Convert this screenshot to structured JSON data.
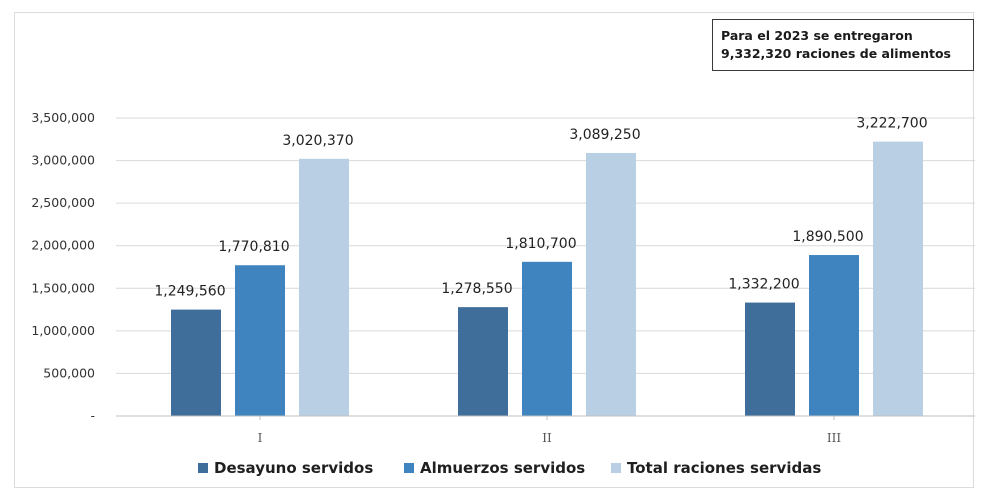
{
  "note": {
    "line1": "Para el 2023 se entregaron",
    "line2": "9,332,320 raciones de alimentos"
  },
  "colors": {
    "desayuno": "#3f6e9b",
    "almuerzos": "#3f84bf",
    "total": "#b9cfe4",
    "grid": "#d9d9d9"
  },
  "chart_data": {
    "type": "bar",
    "categories": [
      "I",
      "II",
      "III"
    ],
    "series": [
      {
        "name": "Desayuno servidos",
        "values": [
          1249560,
          1278550,
          1332200
        ],
        "labels": [
          "1,249,560",
          "1,278,550",
          "1,332,200"
        ]
      },
      {
        "name": "Almuerzos servidos",
        "values": [
          1770810,
          1810700,
          1890500
        ],
        "labels": [
          "1,770,810",
          "1,810,700",
          "1,890,500"
        ]
      },
      {
        "name": "Total raciones servidas",
        "values": [
          3020370,
          3089250,
          3222700
        ],
        "labels": [
          "3,020,370",
          "3,089,250",
          "3,222,700"
        ]
      }
    ],
    "ylim": [
      0,
      3500000
    ],
    "yticks": [
      0,
      500000,
      1000000,
      1500000,
      2000000,
      2500000,
      3000000,
      3500000
    ],
    "ytick_labels": [
      "-",
      "500,000",
      "1,000,000",
      "1,500,000",
      "2,000,000",
      "2,500,000",
      "3,000,000",
      "3,500,000"
    ],
    "grid": true,
    "legend": "bottom"
  }
}
